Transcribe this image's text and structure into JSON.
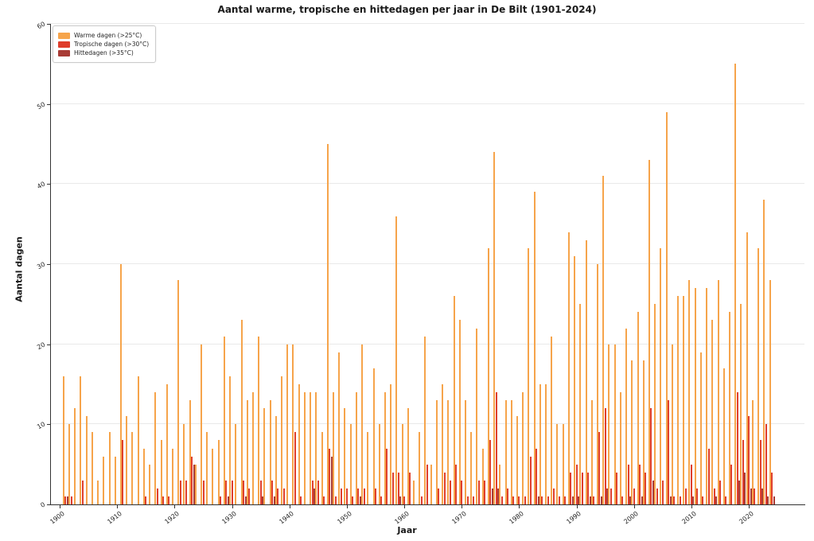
{
  "chart_data": {
    "type": "bar",
    "title": "Aantal warme, tropische en hittedagen per jaar in De Bilt (1901-2024)",
    "xlabel": "Jaar",
    "ylabel": "Aantal dagen",
    "ylim": [
      0,
      60
    ],
    "yticks": [
      0,
      10,
      20,
      30,
      40,
      50,
      60
    ],
    "xticks": [
      1900,
      1910,
      1920,
      1930,
      1940,
      1950,
      1960,
      1970,
      1980,
      1990,
      2000,
      2010,
      2020
    ],
    "grid": "horizontal",
    "legend_position": "upper-left",
    "background": "#ffffff",
    "gridline_color": "#e9e9e9",
    "year_start": 1901,
    "year_end": 2024,
    "years": [
      1901,
      1902,
      1903,
      1904,
      1905,
      1906,
      1907,
      1908,
      1909,
      1910,
      1911,
      1912,
      1913,
      1914,
      1915,
      1916,
      1917,
      1918,
      1919,
      1920,
      1921,
      1922,
      1923,
      1924,
      1925,
      1926,
      1927,
      1928,
      1929,
      1930,
      1931,
      1932,
      1933,
      1934,
      1935,
      1936,
      1937,
      1938,
      1939,
      1940,
      1941,
      1942,
      1943,
      1944,
      1945,
      1946,
      1947,
      1948,
      1949,
      1950,
      1951,
      1952,
      1953,
      1954,
      1955,
      1956,
      1957,
      1958,
      1959,
      1960,
      1961,
      1962,
      1963,
      1964,
      1965,
      1966,
      1967,
      1968,
      1969,
      1970,
      1971,
      1972,
      1973,
      1974,
      1975,
      1976,
      1977,
      1978,
      1979,
      1980,
      1981,
      1982,
      1983,
      1984,
      1985,
      1986,
      1987,
      1988,
      1989,
      1990,
      1991,
      1992,
      1993,
      1994,
      1995,
      1996,
      1997,
      1998,
      1999,
      2000,
      2001,
      2002,
      2003,
      2004,
      2005,
      2006,
      2007,
      2008,
      2009,
      2010,
      2011,
      2012,
      2013,
      2014,
      2015,
      2016,
      2017,
      2018,
      2019,
      2020,
      2021,
      2022,
      2023,
      2024
    ],
    "series": [
      {
        "name": "Warme dagen (>25°C)",
        "color": "#f6a44b",
        "values": [
          16,
          10,
          12,
          16,
          11,
          9,
          3,
          6,
          9,
          6,
          30,
          11,
          9,
          16,
          7,
          5,
          14,
          8,
          15,
          7,
          28,
          10,
          13,
          5,
          20,
          9,
          7,
          8,
          21,
          16,
          10,
          23,
          13,
          14,
          21,
          12,
          13,
          11,
          16,
          20,
          20,
          15,
          14,
          14,
          14,
          9,
          45,
          14,
          19,
          12,
          10,
          14,
          20,
          9,
          17,
          10,
          14,
          15,
          36,
          10,
          12,
          3,
          9,
          21,
          5,
          13,
          15,
          13,
          26,
          23,
          13,
          9,
          22,
          7,
          32,
          44,
          5,
          13,
          13,
          11,
          14,
          32,
          39,
          15,
          15,
          21,
          10,
          10,
          34,
          31,
          25,
          33,
          13,
          30,
          41,
          20,
          20,
          14,
          22,
          18,
          24,
          18,
          43,
          25,
          32,
          49,
          20,
          26,
          26,
          28,
          27,
          19,
          27,
          23,
          28,
          17,
          24,
          55,
          25,
          34,
          13,
          32,
          38,
          28
        ]
      },
      {
        "name": "Tropische dagen (>30°C)",
        "color": "#df3e2c",
        "values": [
          1,
          1,
          0,
          3,
          0,
          0,
          0,
          0,
          0,
          0,
          8,
          0,
          0,
          0,
          1,
          0,
          2,
          1,
          1,
          0,
          3,
          3,
          6,
          0,
          3,
          0,
          0,
          1,
          3,
          3,
          0,
          3,
          2,
          0,
          3,
          0,
          3,
          2,
          2,
          0,
          9,
          1,
          0,
          3,
          3,
          1,
          7,
          1,
          2,
          2,
          1,
          2,
          2,
          0,
          2,
          1,
          7,
          4,
          4,
          1,
          4,
          0,
          1,
          5,
          0,
          2,
          4,
          3,
          5,
          3,
          1,
          1,
          3,
          3,
          8,
          14,
          1,
          2,
          1,
          1,
          1,
          6,
          7,
          1,
          1,
          2,
          1,
          1,
          4,
          5,
          4,
          4,
          1,
          9,
          12,
          2,
          4,
          1,
          5,
          2,
          5,
          4,
          12,
          2,
          3,
          13,
          1,
          1,
          2,
          5,
          2,
          1,
          7,
          2,
          3,
          1,
          5,
          14,
          8,
          11,
          2,
          8,
          10,
          4
        ]
      },
      {
        "name": "Hittedagen (>35°C)",
        "color": "#a83b35",
        "values": [
          1,
          0,
          0,
          0,
          0,
          0,
          0,
          0,
          0,
          0,
          0,
          0,
          0,
          0,
          0,
          0,
          0,
          0,
          0,
          0,
          0,
          0,
          5,
          0,
          0,
          0,
          0,
          0,
          1,
          0,
          0,
          1,
          0,
          0,
          1,
          0,
          1,
          0,
          0,
          0,
          0,
          0,
          0,
          2,
          0,
          0,
          6,
          0,
          0,
          0,
          0,
          1,
          0,
          0,
          0,
          0,
          0,
          0,
          1,
          0,
          0,
          0,
          0,
          0,
          0,
          0,
          0,
          0,
          0,
          0,
          0,
          0,
          0,
          0,
          2,
          2,
          0,
          0,
          0,
          0,
          0,
          0,
          1,
          0,
          0,
          0,
          0,
          0,
          1,
          1,
          0,
          1,
          0,
          1,
          2,
          0,
          0,
          0,
          1,
          0,
          1,
          0,
          3,
          0,
          0,
          1,
          0,
          0,
          0,
          1,
          0,
          0,
          0,
          1,
          0,
          0,
          0,
          3,
          4,
          2,
          0,
          2,
          1,
          1
        ]
      }
    ]
  }
}
